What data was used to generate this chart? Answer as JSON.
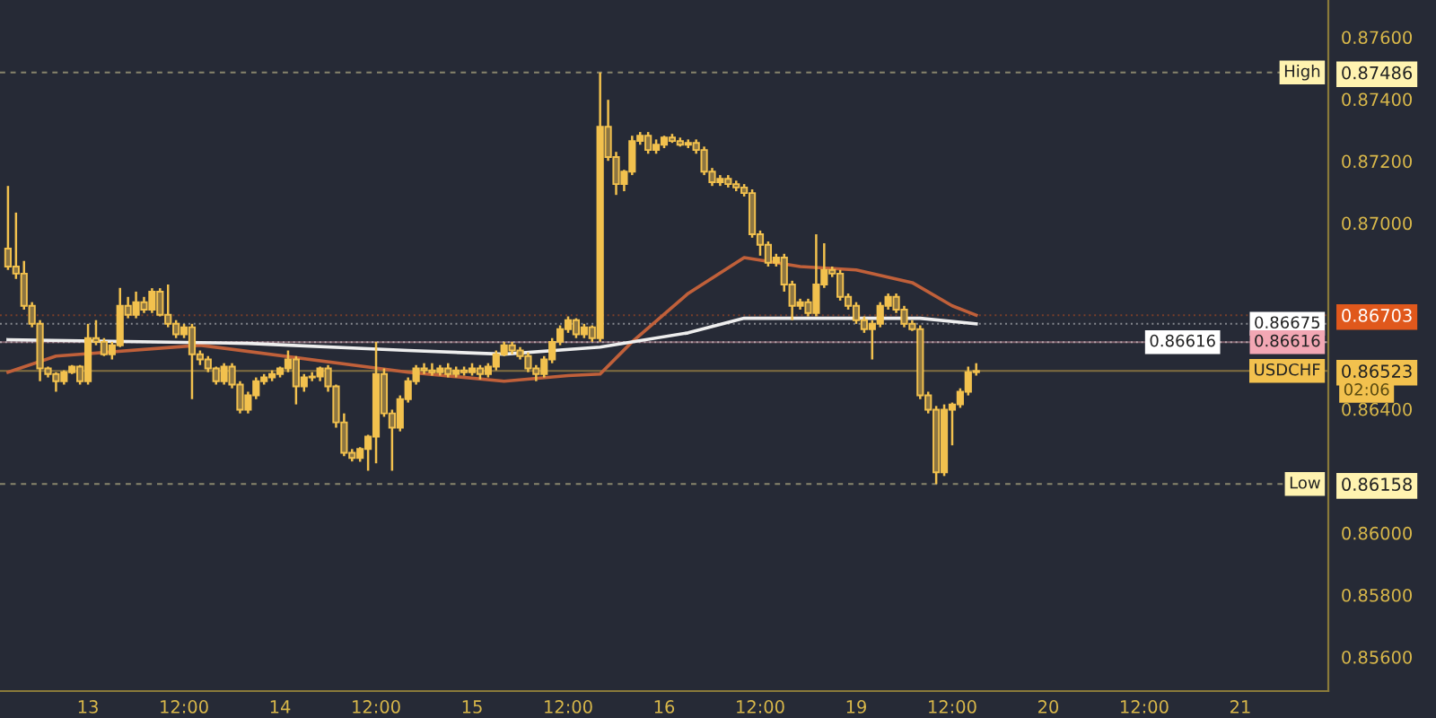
{
  "chart_data": {
    "type": "candlestick",
    "color": "#f2c14e",
    "categories": [
      null,
      null,
      null,
      null,
      null,
      null,
      null,
      null,
      null,
      null,
      "13",
      null,
      null,
      null,
      null,
      null,
      null,
      null,
      null,
      null,
      null,
      null,
      "12:00",
      null,
      null,
      null,
      null,
      null,
      null,
      null,
      null,
      null,
      null,
      null,
      "14",
      null,
      null,
      null,
      null,
      null,
      null,
      null,
      null,
      null,
      null,
      null,
      "12:00",
      null,
      null,
      null,
      null,
      null,
      null,
      null,
      null,
      null,
      null,
      null,
      "15",
      null,
      null,
      null,
      null,
      null,
      null,
      null,
      null,
      null,
      null,
      null,
      "12:00",
      null,
      null,
      null,
      null,
      null,
      null,
      null,
      null,
      null,
      null,
      null,
      "16",
      null,
      null,
      null,
      null,
      null,
      null,
      null,
      null,
      null,
      null,
      null,
      "12:00",
      null,
      null,
      null,
      null,
      null,
      null,
      null,
      null,
      null,
      null,
      null,
      "19",
      null,
      null,
      null,
      null,
      null,
      null,
      null,
      null,
      null,
      null,
      null,
      "12:00",
      null,
      null,
      null,
      null,
      null,
      null,
      null,
      null,
      null,
      null,
      null,
      "20",
      null,
      null,
      null,
      null,
      null,
      null,
      null,
      null,
      null,
      null,
      null,
      "12:00",
      null,
      null,
      null,
      null,
      null,
      null,
      null,
      null,
      null,
      null,
      null,
      "21",
      null,
      null,
      null,
      null,
      null,
      null,
      null,
      null,
      null,
      null
    ],
    "ohlc": [
      [
        0.86918,
        0.8712,
        0.86849,
        0.8686
      ],
      [
        0.8686,
        0.87034,
        0.8682,
        0.86837
      ],
      [
        0.86837,
        0.86878,
        0.86721,
        0.86733
      ],
      [
        0.86733,
        0.86745,
        0.86664,
        0.86675
      ],
      [
        0.86675,
        0.86687,
        0.8649,
        0.86531
      ],
      [
        0.86531,
        0.86537,
        0.86502,
        0.86513
      ],
      [
        0.86513,
        0.86519,
        0.86456,
        0.8649
      ],
      [
        0.8649,
        0.86525,
        0.86479,
        0.86519
      ],
      [
        0.86519,
        0.86542,
        0.86513,
        0.86537
      ],
      [
        0.86537,
        0.86542,
        0.86479,
        0.8649
      ],
      [
        0.8649,
        0.86675,
        0.86479,
        0.86629
      ],
      [
        0.86629,
        0.86687,
        0.86606,
        0.86617
      ],
      [
        0.86617,
        0.86629,
        0.86571,
        0.86577
      ],
      [
        0.86577,
        0.86617,
        0.8656,
        0.86606
      ],
      [
        0.86606,
        0.86791,
        0.866,
        0.86733
      ],
      [
        0.86733,
        0.86762,
        0.86693,
        0.86704
      ],
      [
        0.86704,
        0.86779,
        0.86693,
        0.86745
      ],
      [
        0.86745,
        0.86762,
        0.8671,
        0.86721
      ],
      [
        0.86721,
        0.8679,
        0.8671,
        0.86779
      ],
      [
        0.86779,
        0.8679,
        0.86699,
        0.86704
      ],
      [
        0.86704,
        0.86802,
        0.86664,
        0.86675
      ],
      [
        0.86675,
        0.86687,
        0.86629,
        0.86641
      ],
      [
        0.86641,
        0.86675,
        0.86629,
        0.86664
      ],
      [
        0.86664,
        0.86675,
        0.86432,
        0.86577
      ],
      [
        0.86577,
        0.86589,
        0.86542,
        0.8656
      ],
      [
        0.8656,
        0.86571,
        0.86519,
        0.86531
      ],
      [
        0.86531,
        0.86537,
        0.86479,
        0.8649
      ],
      [
        0.8649,
        0.86548,
        0.86479,
        0.86537
      ],
      [
        0.86537,
        0.86548,
        0.86467,
        0.86479
      ],
      [
        0.86479,
        0.8649,
        0.86386,
        0.86398
      ],
      [
        0.86398,
        0.86456,
        0.86386,
        0.86444
      ],
      [
        0.86444,
        0.86502,
        0.86432,
        0.8649
      ],
      [
        0.8649,
        0.86513,
        0.86479,
        0.86502
      ],
      [
        0.86502,
        0.86525,
        0.8649,
        0.86513
      ],
      [
        0.86513,
        0.86537,
        0.86502,
        0.86531
      ],
      [
        0.86531,
        0.86589,
        0.86519,
        0.8656
      ],
      [
        0.8656,
        0.86571,
        0.86415,
        0.86473
      ],
      [
        0.86473,
        0.86513,
        0.86456,
        0.86502
      ],
      [
        0.86502,
        0.86519,
        0.8649,
        0.86505
      ],
      [
        0.86505,
        0.86537,
        0.8649,
        0.86531
      ],
      [
        0.86531,
        0.86542,
        0.86456,
        0.86473
      ],
      [
        0.86473,
        0.86479,
        0.8634,
        0.86357
      ],
      [
        0.86357,
        0.86386,
        0.86248,
        0.86259
      ],
      [
        0.86259,
        0.86271,
        0.86231,
        0.86242
      ],
      [
        0.86242,
        0.86277,
        0.8623,
        0.86271
      ],
      [
        0.86271,
        0.86317,
        0.86201,
        0.86311
      ],
      [
        0.86311,
        0.86617,
        0.86225,
        0.86513
      ],
      [
        0.86513,
        0.86531,
        0.86375,
        0.86386
      ],
      [
        0.86386,
        0.86398,
        0.86201,
        0.8634
      ],
      [
        0.8634,
        0.86444,
        0.86328,
        0.86432
      ],
      [
        0.86432,
        0.86502,
        0.86421,
        0.8649
      ],
      [
        0.8649,
        0.86542,
        0.86479,
        0.86531
      ],
      [
        0.86531,
        0.86548,
        0.86513,
        0.86525
      ],
      [
        0.86525,
        0.86548,
        0.86508,
        0.86519
      ],
      [
        0.86519,
        0.86542,
        0.86508,
        0.86531
      ],
      [
        0.86531,
        0.86548,
        0.86502,
        0.86513
      ],
      [
        0.86513,
        0.86537,
        0.86502,
        0.86525
      ],
      [
        0.86525,
        0.86537,
        0.86508,
        0.86519
      ],
      [
        0.86519,
        0.86548,
        0.86508,
        0.86531
      ],
      [
        0.86531,
        0.86542,
        0.86496,
        0.86513
      ],
      [
        0.86513,
        0.86548,
        0.86502,
        0.86537
      ],
      [
        0.86537,
        0.86589,
        0.86525,
        0.86577
      ],
      [
        0.86577,
        0.86617,
        0.86571,
        0.86606
      ],
      [
        0.86606,
        0.86617,
        0.86577,
        0.86589
      ],
      [
        0.86589,
        0.866,
        0.8656,
        0.86571
      ],
      [
        0.86571,
        0.86583,
        0.86519,
        0.86531
      ],
      [
        0.86531,
        0.86542,
        0.8649,
        0.86513
      ],
      [
        0.86513,
        0.86571,
        0.86502,
        0.8656
      ],
      [
        0.8656,
        0.86629,
        0.86548,
        0.86617
      ],
      [
        0.86617,
        0.8667,
        0.86606,
        0.86658
      ],
      [
        0.86658,
        0.86699,
        0.86646,
        0.86687
      ],
      [
        0.86687,
        0.86693,
        0.86629,
        0.86641
      ],
      [
        0.86641,
        0.86675,
        0.86629,
        0.86664
      ],
      [
        0.86664,
        0.8667,
        0.86617,
        0.86629
      ],
      [
        0.86629,
        0.87486,
        0.86617,
        0.87311
      ],
      [
        0.87311,
        0.87398,
        0.87201,
        0.87213
      ],
      [
        0.87213,
        0.8723,
        0.87091,
        0.87126
      ],
      [
        0.87126,
        0.87172,
        0.87103,
        0.87166
      ],
      [
        0.87166,
        0.87282,
        0.87155,
        0.87265
      ],
      [
        0.87265,
        0.87294,
        0.87253,
        0.87282
      ],
      [
        0.87282,
        0.87294,
        0.87224,
        0.87236
      ],
      [
        0.87236,
        0.8727,
        0.87224,
        0.87253
      ],
      [
        0.87253,
        0.87282,
        0.87242,
        0.87276
      ],
      [
        0.87276,
        0.87288,
        0.87259,
        0.87265
      ],
      [
        0.87265,
        0.87276,
        0.87247,
        0.87253
      ],
      [
        0.87253,
        0.8727,
        0.87242,
        0.87259
      ],
      [
        0.87259,
        0.8727,
        0.87224,
        0.87236
      ],
      [
        0.87236,
        0.87247,
        0.87155,
        0.87166
      ],
      [
        0.87166,
        0.87178,
        0.8712,
        0.87132
      ],
      [
        0.87132,
        0.87155,
        0.8712,
        0.87143
      ],
      [
        0.87143,
        0.87155,
        0.87115,
        0.87126
      ],
      [
        0.87126,
        0.87137,
        0.87103,
        0.87115
      ],
      [
        0.87115,
        0.87126,
        0.87086,
        0.87097
      ],
      [
        0.87097,
        0.87109,
        0.86953,
        0.86964
      ],
      [
        0.86964,
        0.86976,
        0.86895,
        0.8693
      ],
      [
        0.8693,
        0.86941,
        0.8686,
        0.86872
      ],
      [
        0.86872,
        0.86901,
        0.8686,
        0.86889
      ],
      [
        0.86889,
        0.86901,
        0.86779,
        0.86802
      ],
      [
        0.86802,
        0.86814,
        0.86687,
        0.86733
      ],
      [
        0.86733,
        0.86756,
        0.86721,
        0.86745
      ],
      [
        0.86745,
        0.86756,
        0.86699,
        0.8671
      ],
      [
        0.8671,
        0.86964,
        0.86699,
        0.86802
      ],
      [
        0.86802,
        0.86935,
        0.86791,
        0.86849
      ],
      [
        0.86849,
        0.8686,
        0.86826,
        0.86837
      ],
      [
        0.86837,
        0.86849,
        0.8675,
        0.86762
      ],
      [
        0.86762,
        0.86773,
        0.86721,
        0.86733
      ],
      [
        0.86733,
        0.86745,
        0.86675,
        0.86687
      ],
      [
        0.86687,
        0.86699,
        0.86646,
        0.86658
      ],
      [
        0.86658,
        0.86687,
        0.8656,
        0.86675
      ],
      [
        0.86675,
        0.86745,
        0.86664,
        0.86733
      ],
      [
        0.86733,
        0.86773,
        0.86721,
        0.86762
      ],
      [
        0.86762,
        0.86773,
        0.8671,
        0.86721
      ],
      [
        0.86721,
        0.86733,
        0.86664,
        0.86675
      ],
      [
        0.86675,
        0.86687,
        0.86652,
        0.86658
      ],
      [
        0.86658,
        0.8667,
        0.86432,
        0.86444
      ],
      [
        0.86444,
        0.86456,
        0.86386,
        0.86398
      ],
      [
        0.86398,
        0.8641,
        0.86158,
        0.86196
      ],
      [
        0.86196,
        0.86415,
        0.86184,
        0.86398
      ],
      [
        0.86398,
        0.86421,
        0.86283,
        0.86415
      ],
      [
        0.86415,
        0.86467,
        0.86404,
        0.86456
      ],
      [
        0.86456,
        0.86537,
        0.86444,
        0.86519
      ],
      [
        0.86519,
        0.86548,
        0.86508,
        0.86523
      ],
      null,
      null,
      null,
      null,
      null,
      null,
      null,
      null,
      null,
      null,
      null,
      null,
      null,
      null,
      null,
      null,
      null,
      null,
      null,
      null,
      null,
      null,
      null,
      null,
      null,
      null,
      null,
      null,
      null,
      null,
      null,
      null,
      null,
      null,
      null,
      null,
      null,
      null,
      null,
      null,
      null,
      null,
      null
    ],
    "series": [
      {
        "type": "line",
        "color": "#c0603a",
        "values": [
          0.86519,
          null,
          null,
          null,
          null,
          null,
          0.86571,
          null,
          null,
          null,
          null,
          null,
          null,
          null,
          null,
          null,
          null,
          null,
          null,
          null,
          null,
          null,
          null,
          null,
          0.86606,
          null,
          null,
          null,
          null,
          null,
          null,
          null,
          null,
          null,
          null,
          null,
          null,
          null,
          null,
          null,
          null,
          null,
          null,
          null,
          null,
          null,
          null,
          null,
          null,
          null,
          0.86519,
          null,
          null,
          null,
          null,
          null,
          null,
          null,
          null,
          null,
          null,
          null,
          0.8649,
          null,
          null,
          null,
          null,
          null,
          null,
          null,
          0.86508,
          null,
          null,
          null,
          0.86513,
          null,
          null,
          null,
          0.86617,
          null,
          null,
          null,
          null,
          null,
          null,
          0.86773,
          null,
          null,
          null,
          null,
          null,
          null,
          0.86889,
          null,
          null,
          null,
          null,
          null,
          null,
          0.8686,
          null,
          null,
          null,
          null,
          null,
          null,
          0.86849,
          null,
          null,
          null,
          null,
          null,
          null,
          0.86808,
          null,
          null,
          null,
          null,
          0.86733,
          null,
          null,
          0.86703,
          null,
          null,
          null,
          null,
          null,
          null,
          null,
          null,
          null,
          null,
          null,
          null,
          null,
          null,
          null,
          null,
          null,
          null,
          null,
          null,
          null,
          null,
          null,
          null,
          null,
          null,
          null,
          null,
          null,
          null,
          null,
          null,
          null,
          null,
          null,
          null,
          null,
          null,
          null,
          null,
          null,
          null,
          null
        ]
      },
      {
        "type": "line",
        "color": "#eeeeee",
        "values": [
          0.86624,
          null,
          null,
          null,
          null,
          null,
          null,
          null,
          null,
          null,
          null,
          null,
          null,
          null,
          null,
          null,
          null,
          null,
          null,
          null,
          null,
          null,
          null,
          null,
          null,
          null,
          null,
          null,
          null,
          null,
          0.86612,
          null,
          null,
          null,
          null,
          null,
          null,
          null,
          null,
          null,
          null,
          null,
          null,
          null,
          null,
          null,
          null,
          null,
          null,
          null,
          0.86589,
          null,
          null,
          null,
          null,
          null,
          null,
          null,
          null,
          null,
          null,
          null,
          0.86577,
          null,
          null,
          null,
          null,
          null,
          null,
          null,
          null,
          null,
          null,
          null,
          0.866,
          null,
          null,
          null,
          null,
          null,
          null,
          null,
          null,
          null,
          null,
          0.86646,
          null,
          null,
          null,
          null,
          null,
          null,
          0.86693,
          null,
          null,
          null,
          null,
          null,
          null,
          null,
          null,
          null,
          null,
          null,
          null,
          null,
          0.86693,
          null,
          null,
          null,
          null,
          null,
          null,
          null,
          0.86693,
          null,
          null,
          null,
          null,
          null,
          null,
          0.86675,
          null,
          null,
          null,
          null,
          null,
          null,
          null,
          null,
          null,
          null,
          null,
          null,
          null,
          null,
          null,
          null,
          null,
          null,
          null,
          null,
          null,
          null,
          null,
          null,
          null,
          null,
          null,
          null,
          null,
          null,
          null,
          null,
          null,
          null,
          null,
          null,
          null,
          null,
          null,
          null,
          null,
          null,
          null
        ]
      }
    ],
    "ylim": [
      0.8549,
      0.8772
    ],
    "yticks": [
      {
        "value": 0.856,
        "label": "0.85600"
      },
      {
        "value": 0.858,
        "label": "0.85800"
      },
      {
        "value": 0.86,
        "label": "0.86000"
      },
      {
        "value": 0.86158,
        "label": "0.86158"
      },
      {
        "value": 0.864,
        "label": "0.86400"
      },
      {
        "value": 0.86523,
        "label": "0.86523"
      },
      {
        "value": 0.86703,
        "label": "0.86703"
      },
      {
        "value": 0.87,
        "label": "0.87000"
      },
      {
        "value": 0.872,
        "label": "0.87200"
      },
      {
        "value": 0.874,
        "label": "0.87400"
      },
      {
        "value": 0.87486,
        "label": "0.87486"
      },
      {
        "value": 0.876,
        "label": "0.87600"
      }
    ],
    "ref_lines": [
      {
        "axis": "y",
        "value": 0.87486,
        "label": "High",
        "color": "#fff3b0",
        "line_style": "dashed"
      },
      {
        "axis": "y",
        "value": 0.86158,
        "label": "Low",
        "color": "#fff3b0",
        "line_style": "dashed"
      },
      {
        "axis": "y",
        "value": 0.86523,
        "label": "USDCHF",
        "color": "#f2c14e",
        "line_style": "solid"
      },
      {
        "axis": "y",
        "value": 0.86703,
        "color": "#e0581c",
        "line_style": "dotted"
      },
      {
        "axis": "y",
        "value": 0.86675,
        "label": "0.86675",
        "color": "#ffffff",
        "line_style": "dotted"
      },
      {
        "axis": "y",
        "value": 0.86616,
        "label": "0.86616",
        "color": "#f2a7b4",
        "line_style": "solid"
      },
      {
        "axis": "y",
        "value": 0.86616,
        "label": "0.86616",
        "color": "#ffffff",
        "line_style": "dotted"
      }
    ],
    "annotations": [
      "02:06"
    ],
    "grid": false
  }
}
